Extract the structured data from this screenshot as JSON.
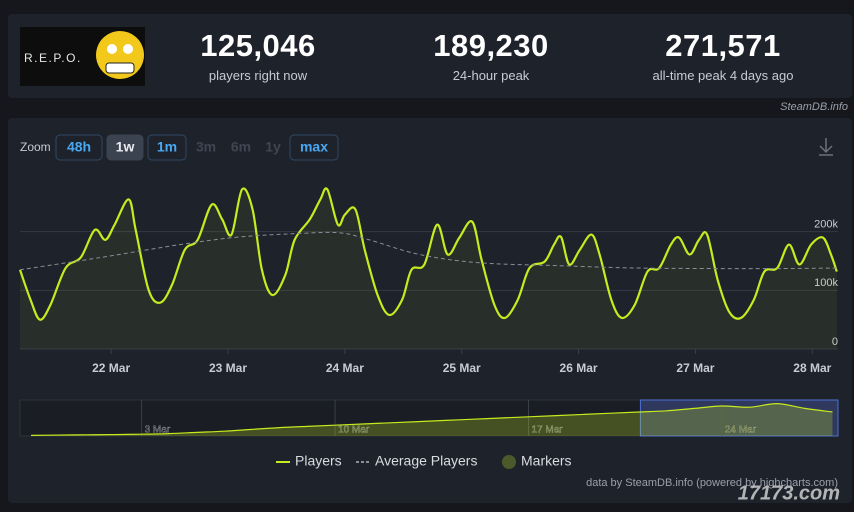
{
  "header": {
    "logo_text": "R.E.P.O.",
    "stats": [
      {
        "value": "125,046",
        "label": "players right now"
      },
      {
        "value": "189,230",
        "label": "24-hour peak"
      },
      {
        "value": "271,571",
        "label": "all-time peak 4 days ago"
      }
    ],
    "source": "SteamDB.info"
  },
  "zoom": {
    "label": "Zoom",
    "options": [
      "48h",
      "1w",
      "1m",
      "3m",
      "6m",
      "1y",
      "max"
    ],
    "selected": "1w",
    "disabled": [
      "3m",
      "6m",
      "1y"
    ]
  },
  "chart_data": [
    {
      "type": "line",
      "xlim": [
        21.22,
        28.22
      ],
      "xticks": [
        {
          "value": 22,
          "label": "22 Mar"
        },
        {
          "value": 23,
          "label": "23 Mar"
        },
        {
          "value": 24,
          "label": "24 Mar"
        },
        {
          "value": 25,
          "label": "25 Mar"
        },
        {
          "value": 26,
          "label": "26 Mar"
        },
        {
          "value": 27,
          "label": "27 Mar"
        },
        {
          "value": 28,
          "label": "28 Mar"
        }
      ],
      "ylim": [
        0,
        300000
      ],
      "yticks": [
        0,
        {
          "value": 100000,
          "label": "100k"
        },
        {
          "value": 200000,
          "label": "200k"
        }
      ],
      "grid": true,
      "series": [
        {
          "name": "Players",
          "color": "#c6eb1f",
          "x": [
            21.22,
            21.31,
            21.39,
            21.48,
            21.61,
            21.74,
            21.86,
            21.95,
            22.03,
            22.15,
            22.21,
            22.32,
            22.42,
            22.52,
            22.63,
            22.74,
            22.86,
            22.95,
            23.03,
            23.12,
            23.21,
            23.29,
            23.38,
            23.49,
            23.57,
            23.7,
            23.79,
            23.85,
            23.94,
            24.0,
            24.09,
            24.17,
            24.28,
            24.38,
            24.49,
            24.57,
            24.68,
            24.79,
            24.88,
            24.98,
            25.09,
            25.17,
            25.28,
            25.37,
            25.48,
            25.58,
            25.71,
            25.79,
            25.85,
            25.92,
            26.01,
            26.11,
            26.18,
            26.28,
            26.37,
            26.48,
            26.59,
            26.69,
            26.79,
            26.86,
            26.95,
            27.03,
            27.1,
            27.19,
            27.29,
            27.39,
            27.5,
            27.59,
            27.7,
            27.8,
            27.89,
            27.99,
            28.09,
            28.16,
            28.21
          ],
          "values": [
            135000,
            84000,
            50000,
            75000,
            138000,
            156000,
            203000,
            186000,
            212000,
            255000,
            203000,
            101000,
            79000,
            109000,
            169000,
            186000,
            246000,
            221000,
            195000,
            272000,
            238000,
            135000,
            92000,
            126000,
            186000,
            221000,
            255000,
            272000,
            212000,
            229000,
            238000,
            169000,
            92000,
            58000,
            84000,
            135000,
            144000,
            212000,
            161000,
            190000,
            217000,
            152000,
            75000,
            53000,
            84000,
            138000,
            149000,
            178000,
            191000,
            144000,
            169000,
            195000,
            161000,
            84000,
            53000,
            75000,
            132000,
            138000,
            178000,
            190000,
            161000,
            186000,
            195000,
            118000,
            63000,
            53000,
            84000,
            132000,
            138000,
            178000,
            144000,
            178000,
            190000,
            161000,
            132000
          ]
        },
        {
          "name": "Average Players",
          "color": "#8a8f98",
          "dashed": true,
          "x": [
            21.22,
            21.91,
            22.59,
            23.1,
            23.62,
            23.96,
            24.21,
            24.64,
            25.15,
            25.84,
            26.52,
            27.55,
            28.21
          ],
          "values": [
            135000,
            156000,
            178000,
            191000,
            197000,
            198000,
            186000,
            161000,
            147000,
            142000,
            138000,
            137000,
            138000
          ]
        },
        {
          "name": "Markers",
          "color": "#4b5a2a",
          "x": [],
          "values": []
        }
      ]
    },
    {
      "type": "area",
      "xlim": [
        -1.4,
        28.2
      ],
      "xticks": [
        {
          "value": 3,
          "label": "3 Mar"
        },
        {
          "value": 10,
          "label": "10 Mar"
        },
        {
          "value": 17,
          "label": "17 Mar"
        },
        {
          "value": 24,
          "label": "24 Mar"
        }
      ],
      "ylim": [
        0,
        300000
      ],
      "selection": [
        21.05,
        28.2
      ],
      "series": [
        {
          "name": "Players",
          "color": "#c6eb1f",
          "x": [
            -1,
            0,
            1,
            2,
            3,
            4,
            5,
            6,
            7,
            8,
            9,
            10,
            11,
            12,
            13,
            14,
            15,
            16,
            17,
            18,
            19,
            20,
            21,
            22,
            23,
            24,
            25,
            26,
            27,
            28
          ],
          "values": [
            5000,
            8000,
            10000,
            12000,
            15000,
            20000,
            30000,
            40000,
            55000,
            70000,
            80000,
            90000,
            100000,
            110000,
            120000,
            130000,
            140000,
            150000,
            160000,
            170000,
            180000,
            190000,
            200000,
            210000,
            230000,
            250000,
            240000,
            270000,
            230000,
            200000
          ]
        }
      ]
    }
  ],
  "credit": "data by SteamDB.info (powered by highcharts.com)",
  "watermark": "17173.com"
}
